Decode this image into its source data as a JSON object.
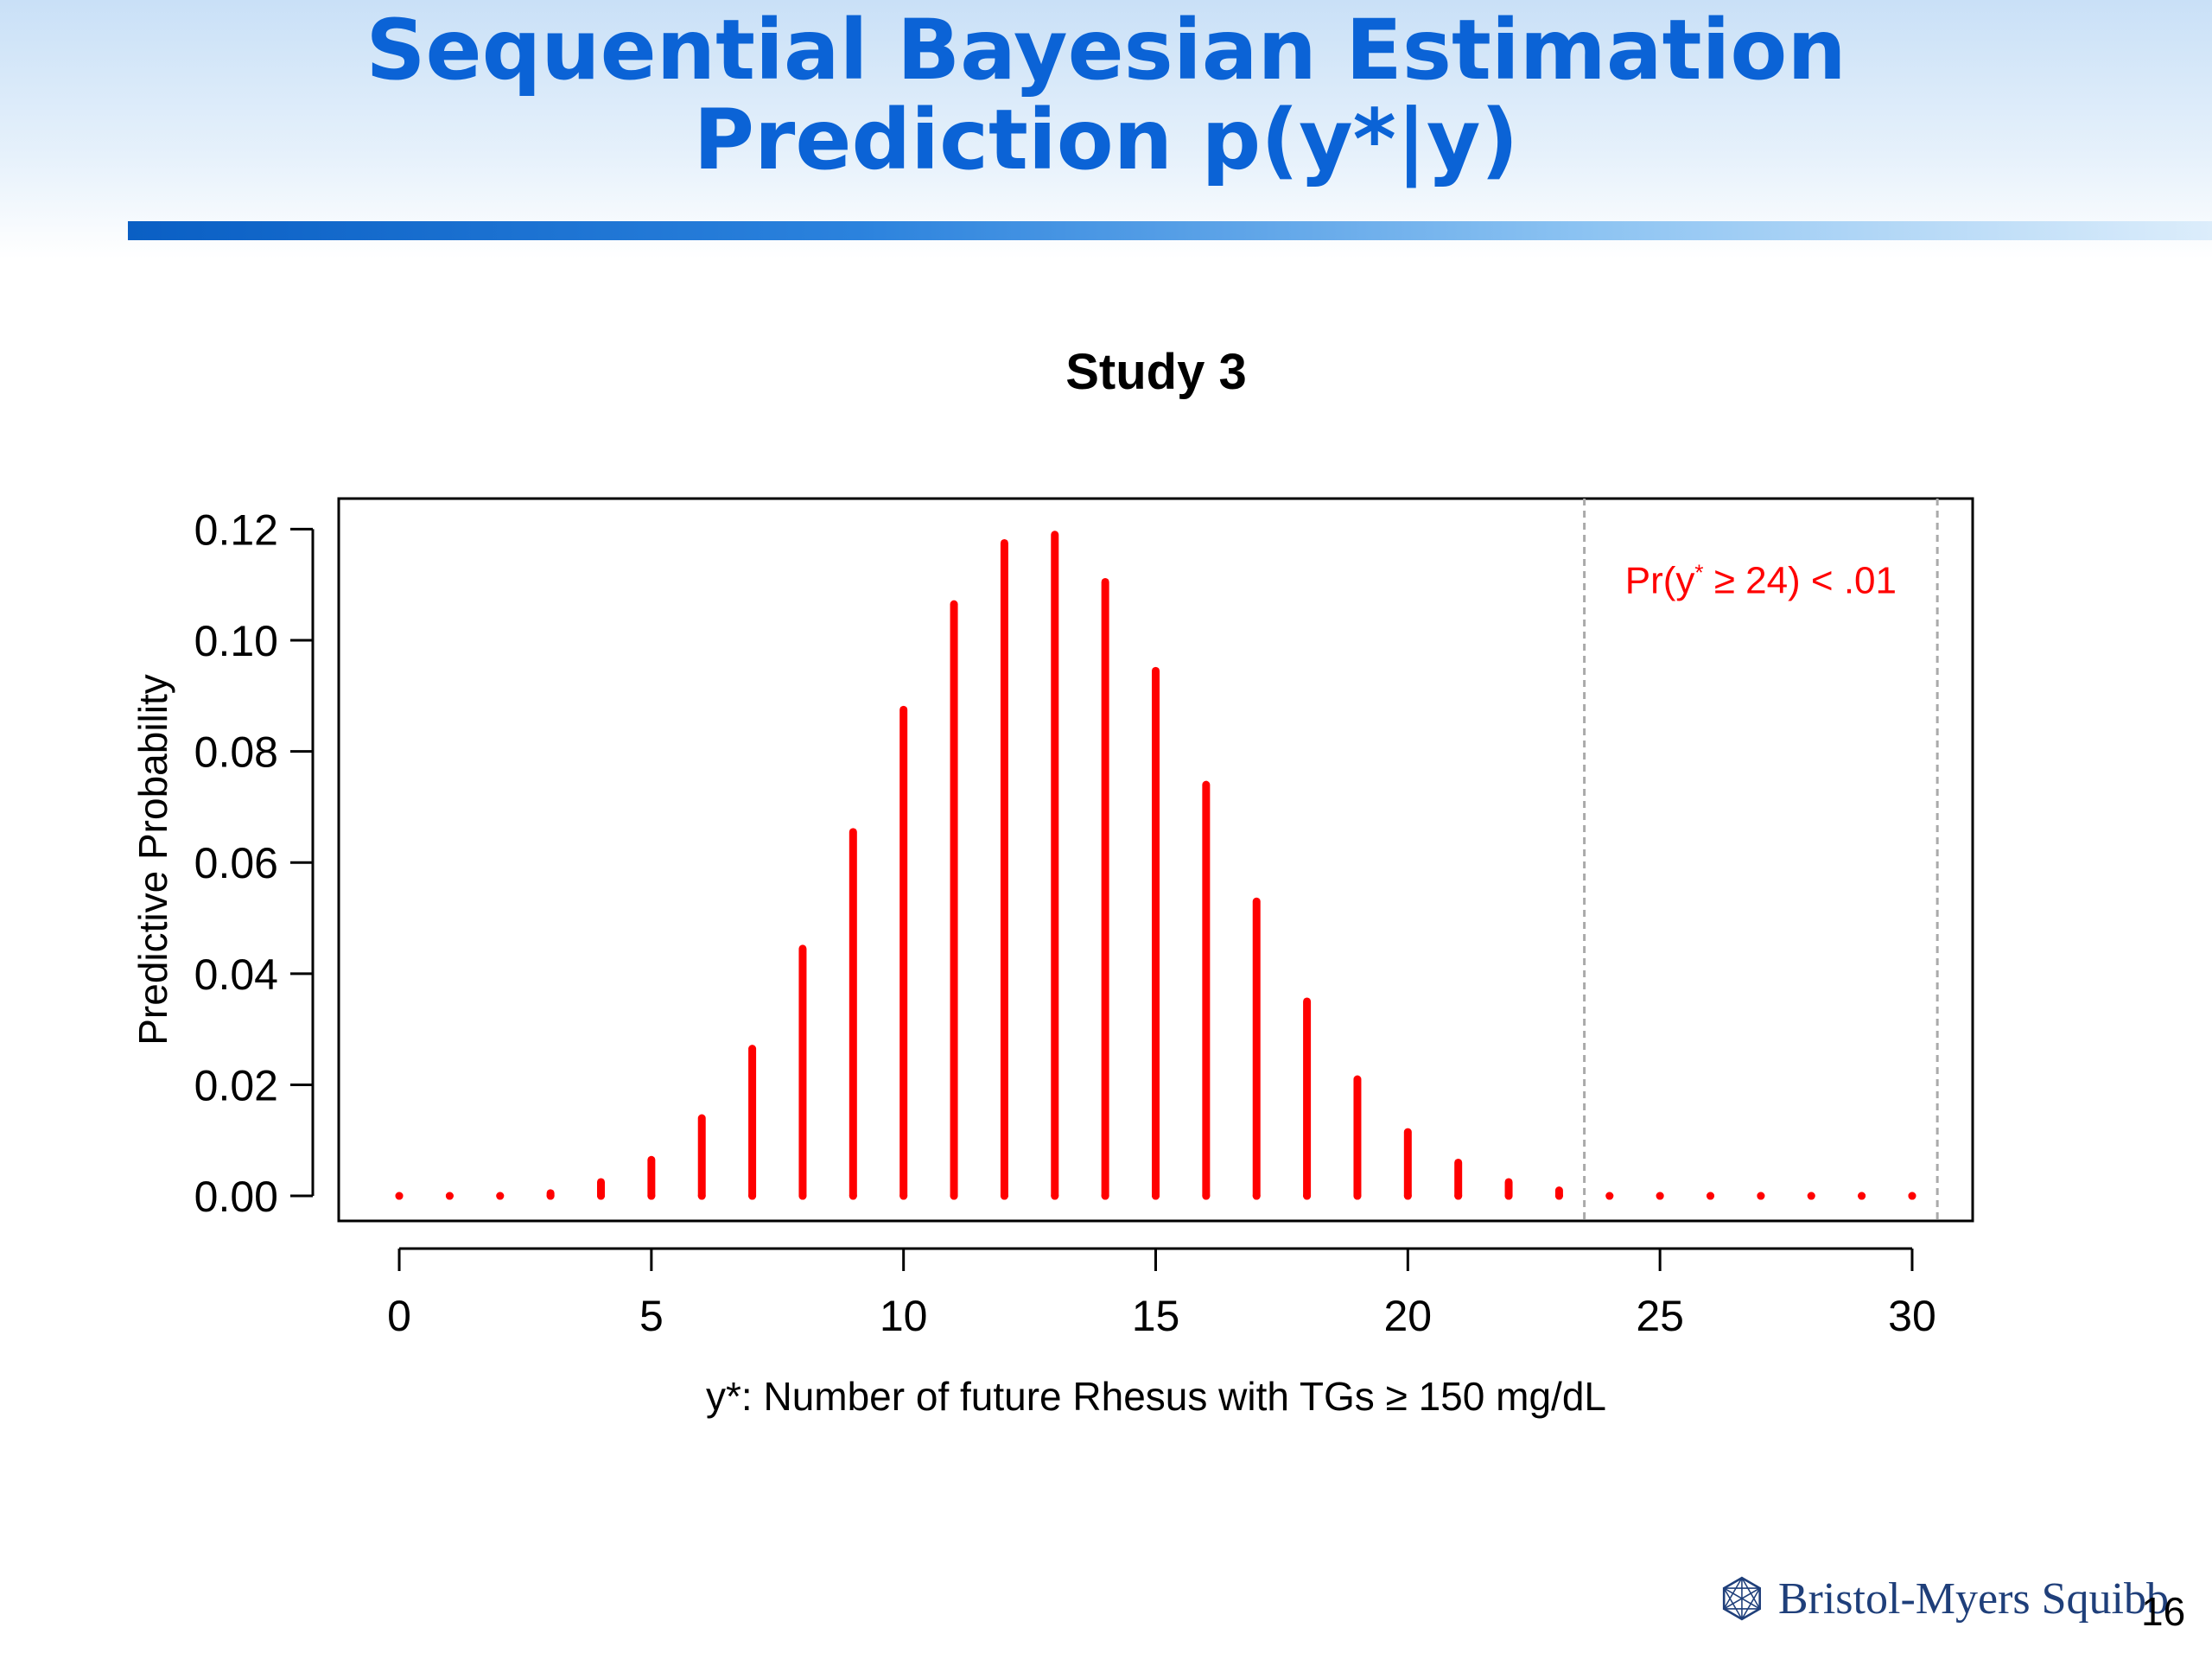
{
  "slide": {
    "title_line1": "Sequential Bayesian Estimation",
    "title_line2": "Prediction p(y*|y)",
    "brand": "Bristol-Myers Squibb",
    "brand_icon": "bms-star-logo-icon",
    "page_number": "16"
  },
  "colors": {
    "title": "#0b63d6",
    "bars": "#ff0000",
    "annotation": "#ff0000",
    "axis": "#000000",
    "vline": "#aaaaaa"
  },
  "chart_data": {
    "type": "bar",
    "title": "Study 3",
    "xlabel": "y*: Number of future Rhesus with TGs ≥ 150 mg/dL",
    "ylabel": "Predictive Probability",
    "xlim": [
      -1.2,
      31.2
    ],
    "ylim": [
      -0.0045,
      0.1255
    ],
    "xticks": [
      0,
      5,
      10,
      15,
      20,
      25,
      30
    ],
    "xtick_labels": [
      "0",
      "5",
      "10",
      "15",
      "20",
      "25",
      "30"
    ],
    "yticks": [
      0.0,
      0.02,
      0.04,
      0.06,
      0.08,
      0.1,
      0.12
    ],
    "ytick_labels": [
      "0.00",
      "0.02",
      "0.04",
      "0.06",
      "0.08",
      "0.10",
      "0.12"
    ],
    "grid": false,
    "x": [
      0,
      1,
      2,
      3,
      4,
      5,
      6,
      7,
      8,
      9,
      10,
      11,
      12,
      13,
      14,
      15,
      16,
      17,
      18,
      19,
      20,
      21,
      22,
      23,
      24,
      25,
      26,
      27,
      28,
      29,
      30
    ],
    "values": [
      0.0,
      0.0,
      0.0,
      0.0005,
      0.0025,
      0.0065,
      0.014,
      0.0265,
      0.0445,
      0.0655,
      0.0875,
      0.1065,
      0.1175,
      0.119,
      0.1105,
      0.0945,
      0.074,
      0.053,
      0.035,
      0.021,
      0.0115,
      0.006,
      0.0025,
      0.001,
      0.0,
      0.0,
      0.0,
      0.0,
      0.0,
      0.0,
      0.0
    ],
    "vlines": [
      23.5,
      30.5
    ],
    "annotation": {
      "prefix": "Pr(y",
      "superscript": "*",
      "suffix": " ≥ 24) < .01",
      "x": 27,
      "y": 0.1085
    }
  }
}
